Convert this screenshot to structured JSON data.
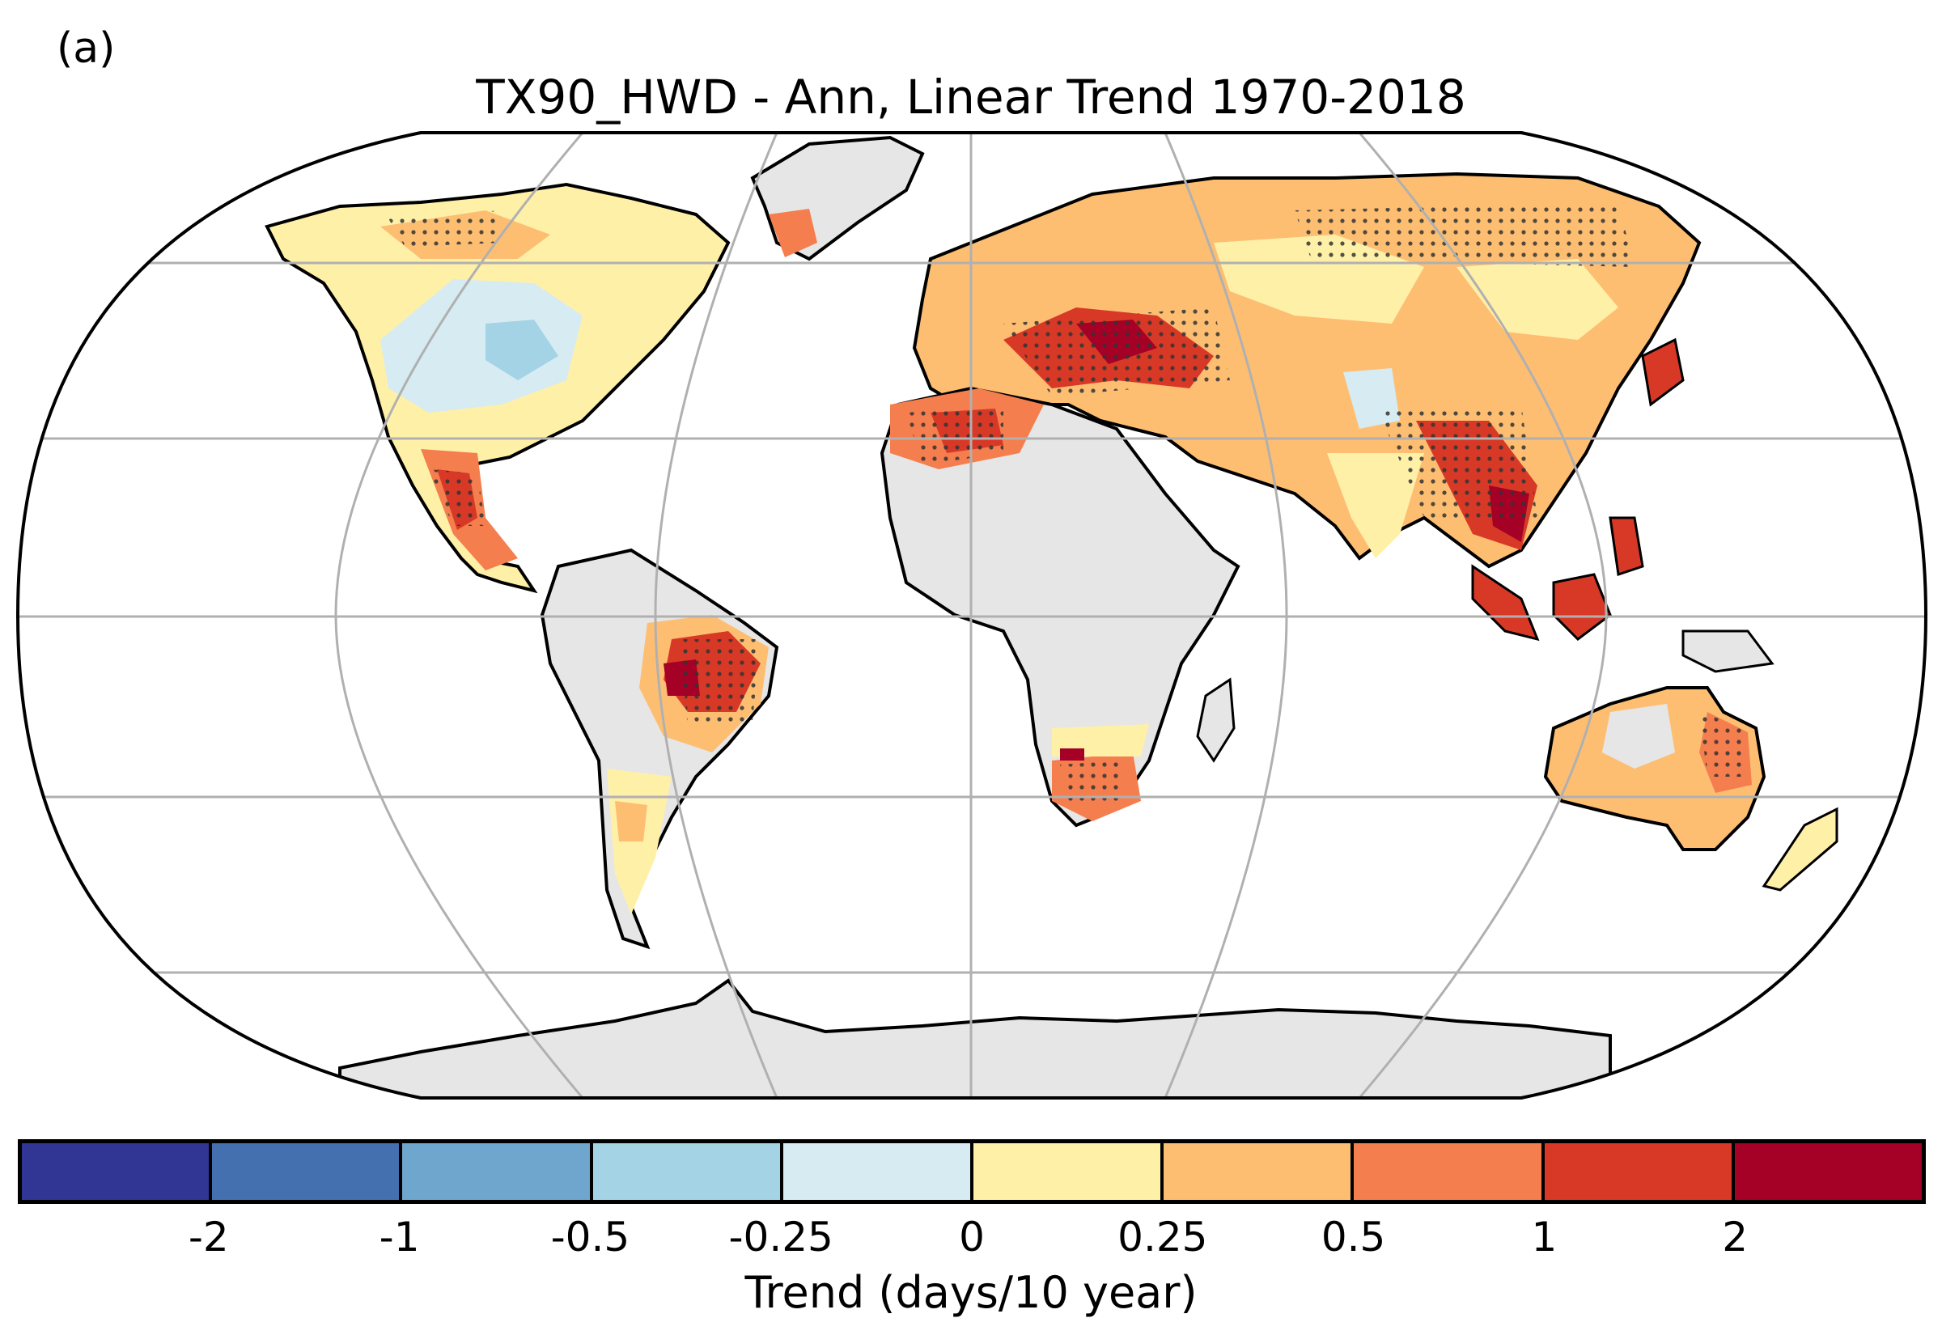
{
  "panel_label": "(a)",
  "title": "TX90_HWD - Ann, Linear Trend 1970-2018",
  "colorbar": {
    "label": "Trend (days/10 year)",
    "tick_labels": [
      "-2",
      "-1",
      "-0.5",
      "-0.25",
      "0",
      "0.25",
      "0.5",
      "1",
      "2"
    ],
    "colors": [
      "#313695",
      "#4470b0",
      "#6ea6cd",
      "#a5d3e6",
      "#d6ebf2",
      "#fff0a8",
      "#fdbe72",
      "#f57e4e",
      "#d83927",
      "#a50026"
    ]
  },
  "map": {
    "projection": "robinson",
    "ocean_color": "#ffffff",
    "no_data_color": "#e6e6e6",
    "stippling": "significant trends marked with dots"
  }
}
